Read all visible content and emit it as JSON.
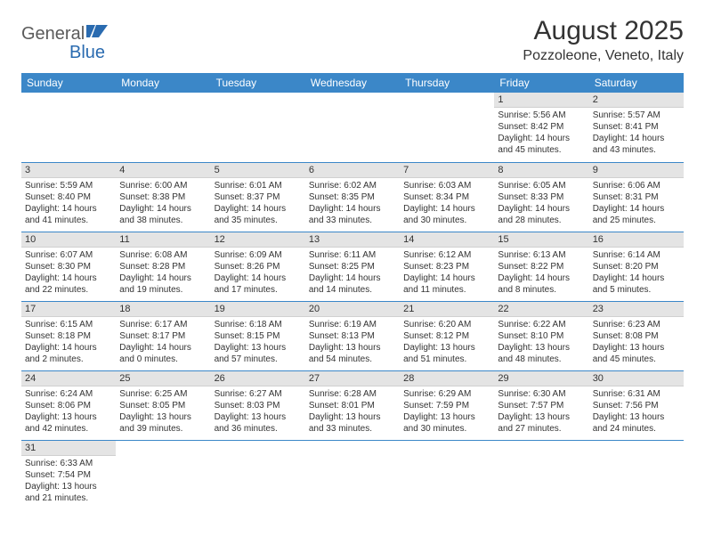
{
  "logo": {
    "part1": "General",
    "part2": "Blue"
  },
  "title": "August 2025",
  "location": "Pozzoleone, Veneto, Italy",
  "colors": {
    "header_bg": "#3b87c8",
    "header_text": "#ffffff",
    "daynum_bg": "#e4e4e4",
    "row_border": "#3b87c8",
    "logo_gray": "#5a5a5a",
    "logo_blue": "#2a6bb0"
  },
  "dayHeaders": [
    "Sunday",
    "Monday",
    "Tuesday",
    "Wednesday",
    "Thursday",
    "Friday",
    "Saturday"
  ],
  "weeks": [
    [
      null,
      null,
      null,
      null,
      null,
      {
        "n": "1",
        "sr": "Sunrise: 5:56 AM",
        "ss": "Sunset: 8:42 PM",
        "d1": "Daylight: 14 hours",
        "d2": "and 45 minutes."
      },
      {
        "n": "2",
        "sr": "Sunrise: 5:57 AM",
        "ss": "Sunset: 8:41 PM",
        "d1": "Daylight: 14 hours",
        "d2": "and 43 minutes."
      }
    ],
    [
      {
        "n": "3",
        "sr": "Sunrise: 5:59 AM",
        "ss": "Sunset: 8:40 PM",
        "d1": "Daylight: 14 hours",
        "d2": "and 41 minutes."
      },
      {
        "n": "4",
        "sr": "Sunrise: 6:00 AM",
        "ss": "Sunset: 8:38 PM",
        "d1": "Daylight: 14 hours",
        "d2": "and 38 minutes."
      },
      {
        "n": "5",
        "sr": "Sunrise: 6:01 AM",
        "ss": "Sunset: 8:37 PM",
        "d1": "Daylight: 14 hours",
        "d2": "and 35 minutes."
      },
      {
        "n": "6",
        "sr": "Sunrise: 6:02 AM",
        "ss": "Sunset: 8:35 PM",
        "d1": "Daylight: 14 hours",
        "d2": "and 33 minutes."
      },
      {
        "n": "7",
        "sr": "Sunrise: 6:03 AM",
        "ss": "Sunset: 8:34 PM",
        "d1": "Daylight: 14 hours",
        "d2": "and 30 minutes."
      },
      {
        "n": "8",
        "sr": "Sunrise: 6:05 AM",
        "ss": "Sunset: 8:33 PM",
        "d1": "Daylight: 14 hours",
        "d2": "and 28 minutes."
      },
      {
        "n": "9",
        "sr": "Sunrise: 6:06 AM",
        "ss": "Sunset: 8:31 PM",
        "d1": "Daylight: 14 hours",
        "d2": "and 25 minutes."
      }
    ],
    [
      {
        "n": "10",
        "sr": "Sunrise: 6:07 AM",
        "ss": "Sunset: 8:30 PM",
        "d1": "Daylight: 14 hours",
        "d2": "and 22 minutes."
      },
      {
        "n": "11",
        "sr": "Sunrise: 6:08 AM",
        "ss": "Sunset: 8:28 PM",
        "d1": "Daylight: 14 hours",
        "d2": "and 19 minutes."
      },
      {
        "n": "12",
        "sr": "Sunrise: 6:09 AM",
        "ss": "Sunset: 8:26 PM",
        "d1": "Daylight: 14 hours",
        "d2": "and 17 minutes."
      },
      {
        "n": "13",
        "sr": "Sunrise: 6:11 AM",
        "ss": "Sunset: 8:25 PM",
        "d1": "Daylight: 14 hours",
        "d2": "and 14 minutes."
      },
      {
        "n": "14",
        "sr": "Sunrise: 6:12 AM",
        "ss": "Sunset: 8:23 PM",
        "d1": "Daylight: 14 hours",
        "d2": "and 11 minutes."
      },
      {
        "n": "15",
        "sr": "Sunrise: 6:13 AM",
        "ss": "Sunset: 8:22 PM",
        "d1": "Daylight: 14 hours",
        "d2": "and 8 minutes."
      },
      {
        "n": "16",
        "sr": "Sunrise: 6:14 AM",
        "ss": "Sunset: 8:20 PM",
        "d1": "Daylight: 14 hours",
        "d2": "and 5 minutes."
      }
    ],
    [
      {
        "n": "17",
        "sr": "Sunrise: 6:15 AM",
        "ss": "Sunset: 8:18 PM",
        "d1": "Daylight: 14 hours",
        "d2": "and 2 minutes."
      },
      {
        "n": "18",
        "sr": "Sunrise: 6:17 AM",
        "ss": "Sunset: 8:17 PM",
        "d1": "Daylight: 14 hours",
        "d2": "and 0 minutes."
      },
      {
        "n": "19",
        "sr": "Sunrise: 6:18 AM",
        "ss": "Sunset: 8:15 PM",
        "d1": "Daylight: 13 hours",
        "d2": "and 57 minutes."
      },
      {
        "n": "20",
        "sr": "Sunrise: 6:19 AM",
        "ss": "Sunset: 8:13 PM",
        "d1": "Daylight: 13 hours",
        "d2": "and 54 minutes."
      },
      {
        "n": "21",
        "sr": "Sunrise: 6:20 AM",
        "ss": "Sunset: 8:12 PM",
        "d1": "Daylight: 13 hours",
        "d2": "and 51 minutes."
      },
      {
        "n": "22",
        "sr": "Sunrise: 6:22 AM",
        "ss": "Sunset: 8:10 PM",
        "d1": "Daylight: 13 hours",
        "d2": "and 48 minutes."
      },
      {
        "n": "23",
        "sr": "Sunrise: 6:23 AM",
        "ss": "Sunset: 8:08 PM",
        "d1": "Daylight: 13 hours",
        "d2": "and 45 minutes."
      }
    ],
    [
      {
        "n": "24",
        "sr": "Sunrise: 6:24 AM",
        "ss": "Sunset: 8:06 PM",
        "d1": "Daylight: 13 hours",
        "d2": "and 42 minutes."
      },
      {
        "n": "25",
        "sr": "Sunrise: 6:25 AM",
        "ss": "Sunset: 8:05 PM",
        "d1": "Daylight: 13 hours",
        "d2": "and 39 minutes."
      },
      {
        "n": "26",
        "sr": "Sunrise: 6:27 AM",
        "ss": "Sunset: 8:03 PM",
        "d1": "Daylight: 13 hours",
        "d2": "and 36 minutes."
      },
      {
        "n": "27",
        "sr": "Sunrise: 6:28 AM",
        "ss": "Sunset: 8:01 PM",
        "d1": "Daylight: 13 hours",
        "d2": "and 33 minutes."
      },
      {
        "n": "28",
        "sr": "Sunrise: 6:29 AM",
        "ss": "Sunset: 7:59 PM",
        "d1": "Daylight: 13 hours",
        "d2": "and 30 minutes."
      },
      {
        "n": "29",
        "sr": "Sunrise: 6:30 AM",
        "ss": "Sunset: 7:57 PM",
        "d1": "Daylight: 13 hours",
        "d2": "and 27 minutes."
      },
      {
        "n": "30",
        "sr": "Sunrise: 6:31 AM",
        "ss": "Sunset: 7:56 PM",
        "d1": "Daylight: 13 hours",
        "d2": "and 24 minutes."
      }
    ],
    [
      {
        "n": "31",
        "sr": "Sunrise: 6:33 AM",
        "ss": "Sunset: 7:54 PM",
        "d1": "Daylight: 13 hours",
        "d2": "and 21 minutes."
      },
      null,
      null,
      null,
      null,
      null,
      null
    ]
  ]
}
